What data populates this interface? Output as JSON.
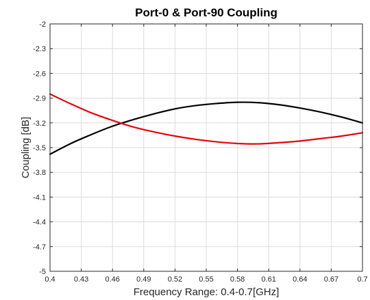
{
  "chart_data": {
    "type": "line",
    "title": "Port-0 & Port-90 Coupling",
    "xlabel": "Frequency Range: 0.4-0.7[GHz]",
    "ylabel": "Coupling [dB]",
    "xlim": [
      0.4,
      0.7
    ],
    "ylim": [
      -5,
      -2
    ],
    "xticks": [
      0.4,
      0.43,
      0.46,
      0.49,
      0.52,
      0.55,
      0.58,
      0.61,
      0.64,
      0.67,
      0.7
    ],
    "xtick_labels": [
      "0.4",
      "0.43",
      "0.46",
      "0.49",
      "0.52",
      "0.55",
      "0.58",
      "0.61",
      "0.64",
      "0.67",
      "0.7"
    ],
    "yticks": [
      -2,
      -2.3,
      -2.6,
      -2.9,
      -3.2,
      -3.5,
      -3.8,
      -4.1,
      -4.4,
      -4.7,
      -5
    ],
    "ytick_labels": [
      "-2",
      "-2.3",
      "-2.6",
      "-2.9",
      "-3.2",
      "-3.5",
      "-3.8",
      "-4.1",
      "-4.4",
      "-4.7",
      "-5"
    ],
    "grid": true,
    "series": [
      {
        "color": "#000000",
        "x": [
          0.4,
          0.42,
          0.44,
          0.46,
          0.48,
          0.5,
          0.52,
          0.54,
          0.56,
          0.58,
          0.6,
          0.62,
          0.64,
          0.66,
          0.68,
          0.7
        ],
        "y": [
          -3.58,
          -3.45,
          -3.34,
          -3.24,
          -3.16,
          -3.09,
          -3.03,
          -2.99,
          -2.965,
          -2.95,
          -2.955,
          -2.98,
          -3.02,
          -3.07,
          -3.13,
          -3.2
        ]
      },
      {
        "color": "#e8000b",
        "x": [
          0.4,
          0.42,
          0.44,
          0.46,
          0.48,
          0.5,
          0.52,
          0.54,
          0.56,
          0.58,
          0.6,
          0.62,
          0.64,
          0.66,
          0.68,
          0.7
        ],
        "y": [
          -2.85,
          -2.97,
          -3.08,
          -3.17,
          -3.25,
          -3.31,
          -3.36,
          -3.4,
          -3.43,
          -3.45,
          -3.455,
          -3.44,
          -3.42,
          -3.39,
          -3.36,
          -3.32
        ]
      }
    ]
  }
}
